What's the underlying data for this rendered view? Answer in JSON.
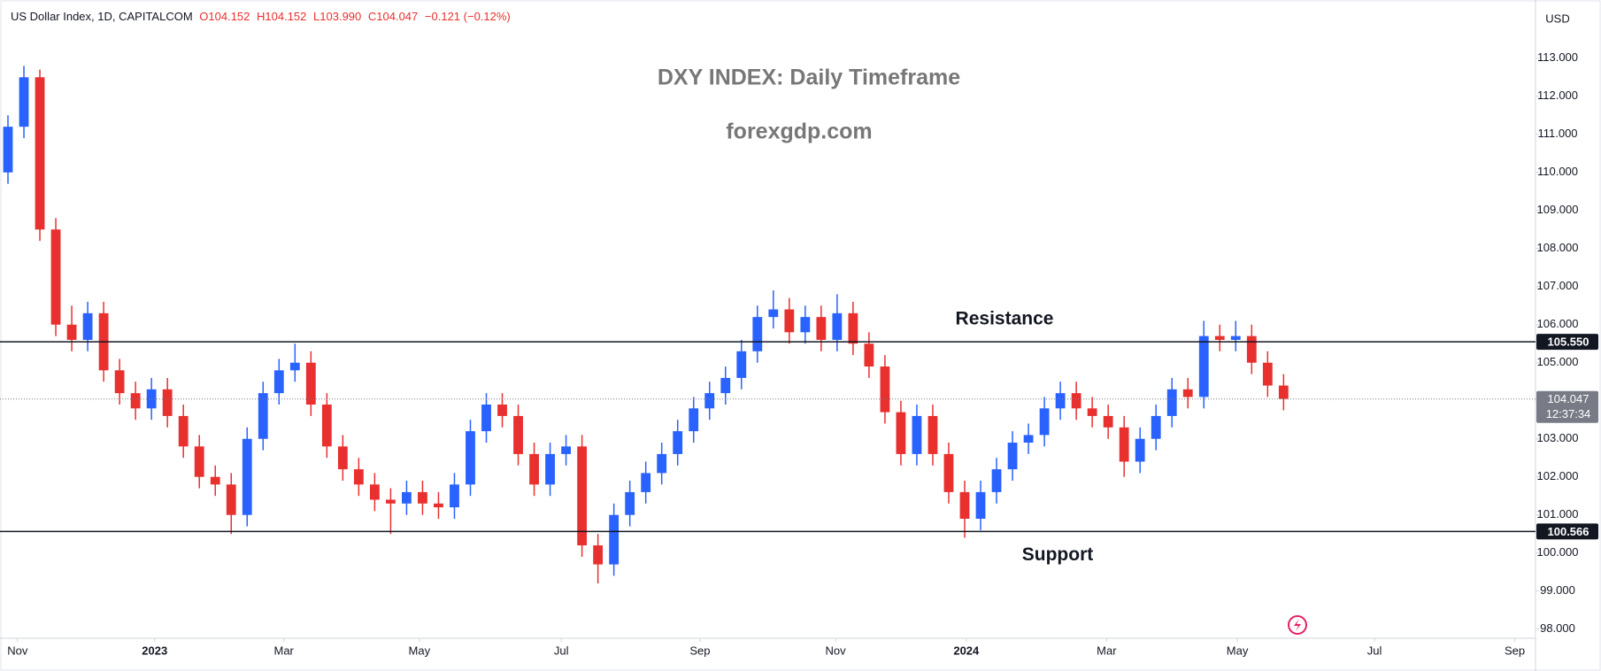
{
  "chart_data": {
    "type": "candlestick",
    "title": "DXY INDEX: Daily Timeframe",
    "subtitle": "forexgdp.com",
    "info": {
      "symbol": "US Dollar Index, 1D, CAPITALCOM",
      "open": "O104.152",
      "high": "H104.152",
      "low": "L103.990",
      "close": "C104.047",
      "change": "−0.121 (−0.12%)"
    },
    "currency": "USD",
    "up_color": "#2962ff",
    "down_color": "#e8302f",
    "open": [
      110.0,
      111.2,
      112.5,
      108.5,
      106.0,
      105.6,
      106.3,
      104.8,
      104.2,
      103.8,
      104.3,
      103.6,
      102.8,
      102.0,
      101.8,
      101.0,
      103.0,
      104.2,
      104.8,
      105.0,
      103.9,
      102.8,
      102.2,
      101.8,
      101.4,
      101.3,
      101.6,
      101.3,
      101.2,
      101.8,
      103.2,
      103.9,
      103.6,
      102.6,
      101.8,
      102.6,
      102.8,
      100.2,
      99.7,
      101.0,
      101.6,
      102.1,
      102.6,
      103.2,
      103.8,
      104.2,
      104.6,
      105.3,
      106.2,
      106.4,
      105.8,
      106.2,
      105.6,
      106.3,
      105.5,
      104.9,
      103.7,
      102.6,
      103.6,
      102.6,
      101.6,
      100.9,
      101.6,
      102.2,
      102.9,
      103.1,
      103.8,
      104.2,
      103.8,
      103.6,
      103.3,
      102.4,
      103.0,
      103.6,
      104.3,
      104.1,
      105.7,
      105.6,
      105.7,
      105.0,
      104.4
    ],
    "high": [
      111.5,
      112.8,
      112.7,
      108.8,
      106.5,
      106.6,
      106.6,
      105.1,
      104.5,
      104.6,
      104.6,
      103.9,
      103.1,
      102.3,
      102.1,
      103.3,
      104.5,
      105.1,
      105.5,
      105.3,
      104.2,
      103.1,
      102.5,
      102.1,
      101.7,
      101.9,
      101.9,
      101.6,
      102.1,
      103.5,
      104.2,
      104.2,
      103.9,
      102.9,
      102.9,
      103.1,
      103.1,
      100.5,
      101.3,
      101.9,
      102.4,
      102.9,
      103.5,
      104.1,
      104.5,
      104.9,
      105.6,
      106.5,
      106.9,
      106.7,
      106.5,
      106.5,
      106.8,
      106.6,
      105.8,
      105.2,
      104.0,
      103.9,
      103.9,
      102.9,
      101.9,
      101.9,
      102.5,
      103.2,
      103.4,
      104.1,
      104.5,
      104.5,
      104.1,
      103.9,
      103.6,
      103.3,
      103.9,
      104.6,
      104.6,
      106.1,
      106.0,
      106.1,
      106.0,
      105.3,
      104.7
    ],
    "low": [
      109.7,
      110.9,
      108.2,
      105.7,
      105.3,
      105.3,
      104.5,
      103.9,
      103.5,
      103.5,
      103.3,
      102.5,
      101.7,
      101.5,
      100.5,
      100.7,
      102.7,
      103.9,
      104.5,
      103.6,
      102.5,
      101.9,
      101.5,
      101.1,
      100.5,
      101.0,
      101.0,
      100.9,
      100.9,
      101.5,
      102.9,
      103.3,
      102.3,
      101.5,
      101.5,
      102.3,
      99.9,
      99.2,
      99.4,
      100.7,
      101.3,
      101.8,
      102.3,
      102.9,
      103.5,
      103.9,
      104.3,
      105.0,
      105.9,
      105.5,
      105.5,
      105.3,
      105.3,
      105.2,
      104.6,
      103.4,
      102.3,
      102.3,
      102.3,
      101.3,
      100.4,
      100.6,
      101.3,
      101.9,
      102.6,
      102.8,
      103.5,
      103.5,
      103.3,
      103.0,
      102.0,
      102.1,
      102.7,
      103.3,
      103.8,
      103.8,
      105.3,
      105.3,
      104.7,
      104.1,
      103.75
    ],
    "close": [
      111.2,
      112.5,
      108.5,
      106.0,
      105.6,
      106.3,
      104.8,
      104.2,
      103.8,
      104.3,
      103.6,
      102.8,
      102.0,
      101.8,
      101.0,
      103.0,
      104.2,
      104.8,
      105.0,
      103.9,
      102.8,
      102.2,
      101.8,
      101.4,
      101.3,
      101.6,
      101.3,
      101.2,
      101.8,
      103.2,
      103.9,
      103.6,
      102.6,
      101.8,
      102.6,
      102.8,
      100.2,
      99.7,
      101.0,
      101.6,
      102.1,
      102.6,
      103.2,
      103.8,
      104.2,
      104.6,
      105.3,
      106.2,
      106.4,
      105.8,
      106.2,
      105.6,
      106.3,
      105.5,
      104.9,
      103.7,
      102.6,
      103.6,
      102.6,
      101.6,
      100.9,
      101.6,
      102.2,
      102.9,
      103.1,
      103.8,
      104.2,
      103.8,
      103.6,
      103.3,
      102.4,
      103.0,
      103.6,
      104.3,
      104.1,
      105.7,
      105.6,
      105.7,
      105.0,
      104.4,
      104.05
    ],
    "xlim": [
      0,
      96.3
    ],
    "xticks": [
      {
        "value": 1.1,
        "label": "Nov"
      },
      {
        "value": 9.7,
        "label": "2023"
      },
      {
        "value": 17.8,
        "label": "Mar"
      },
      {
        "value": 26.3,
        "label": "May"
      },
      {
        "value": 35.2,
        "label": "Jul"
      },
      {
        "value": 43.9,
        "label": "Sep"
      },
      {
        "value": 52.4,
        "label": "Nov"
      },
      {
        "value": 60.6,
        "label": "2024"
      },
      {
        "value": 69.4,
        "label": "Mar"
      },
      {
        "value": 77.6,
        "label": "May"
      },
      {
        "value": 86.2,
        "label": "Jul"
      },
      {
        "value": 95.0,
        "label": "Sep"
      }
    ],
    "ylim": [
      97.76,
      114.53
    ],
    "yticks": [
      {
        "value": 98,
        "label": "98.000"
      },
      {
        "value": 99,
        "label": "99.000"
      },
      {
        "value": 100,
        "label": "100.000"
      },
      {
        "value": 101,
        "label": "101.000"
      },
      {
        "value": 102,
        "label": "102.000"
      },
      {
        "value": 103,
        "label": "103.000"
      },
      {
        "value": 104,
        "label": "104.000"
      },
      {
        "value": 105,
        "label": "105.000"
      },
      {
        "value": 106,
        "label": "106.000"
      },
      {
        "value": 107,
        "label": "107.000"
      },
      {
        "value": 108,
        "label": "108.000"
      },
      {
        "value": 109,
        "label": "109.000"
      },
      {
        "value": 110,
        "label": "110.000"
      },
      {
        "value": 111,
        "label": "111.000"
      },
      {
        "value": 112,
        "label": "112.000"
      },
      {
        "value": 113,
        "label": "113.000"
      }
    ],
    "levels": [
      {
        "name": "Resistance",
        "value": 105.55,
        "label": "105.550"
      },
      {
        "name": "Support",
        "value": 100.566,
        "label": "100.566"
      }
    ],
    "last_price": {
      "value": 104.047,
      "label": "104.047",
      "countdown": "12:37:34"
    }
  }
}
